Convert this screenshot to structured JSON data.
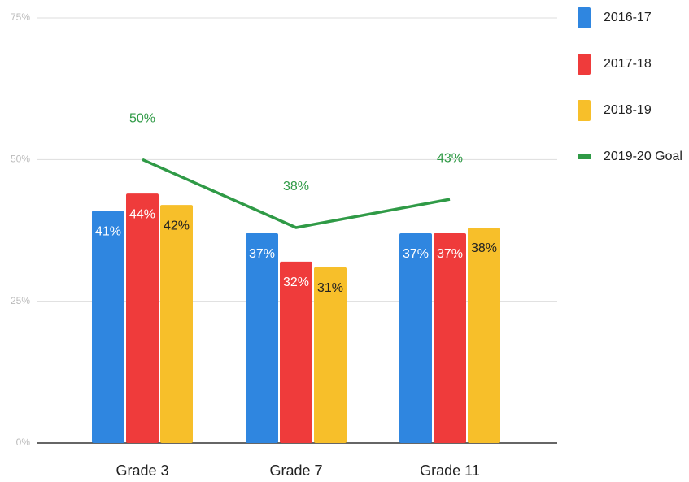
{
  "chart_data": {
    "type": "bar",
    "categories": [
      "Grade 3",
      "Grade 7",
      "Grade 11"
    ],
    "series": [
      {
        "name": "2016-17",
        "color": "#2f86e0",
        "values": [
          41,
          37,
          37
        ],
        "value_labels": [
          "41%",
          "37%",
          "37%"
        ]
      },
      {
        "name": "2017-18",
        "color": "#ef3b3b",
        "values": [
          44,
          32,
          37
        ],
        "value_labels": [
          "44%",
          "32%",
          "37%"
        ]
      },
      {
        "name": "2018-19",
        "color": "#f7bf2a",
        "values": [
          42,
          31,
          38
        ],
        "value_labels": [
          "42%",
          "31%",
          "38%"
        ]
      },
      {
        "name": "2019-20 Goal",
        "type": "line",
        "color": "#2f9a46",
        "values": [
          50,
          38,
          43
        ],
        "value_labels": [
          "50%",
          "38%",
          "43%"
        ]
      }
    ],
    "ylim": [
      0,
      75
    ],
    "yticks": [
      {
        "value": 0,
        "label": "0%"
      },
      {
        "value": 25,
        "label": "25%"
      },
      {
        "value": 50,
        "label": "50%"
      },
      {
        "value": 75,
        "label": "75%"
      }
    ],
    "grid": true,
    "legend": "right"
  }
}
